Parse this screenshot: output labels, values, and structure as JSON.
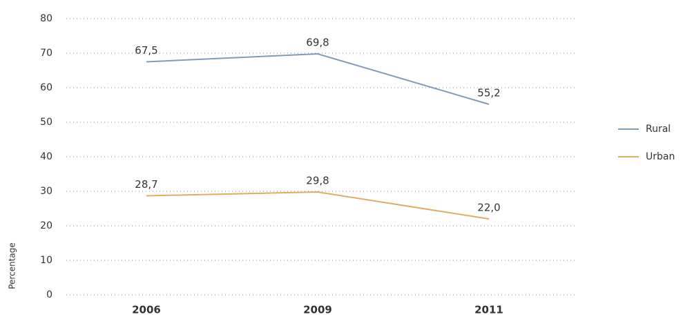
{
  "chart_data": {
    "type": "line",
    "ylabel": "Percentage",
    "categories": [
      "2006",
      "2009",
      "2011"
    ],
    "series": [
      {
        "name": "Rural",
        "color": "#7f9bb5",
        "values": [
          67.5,
          69.8,
          55.2
        ],
        "value_labels": [
          "67,5",
          "69,8",
          "55,2"
        ]
      },
      {
        "name": "Urban",
        "color": "#dfad62",
        "values": [
          28.7,
          29.8,
          22.0
        ],
        "value_labels": [
          "28,7",
          "29,8",
          "22,0"
        ]
      }
    ],
    "ylim": [
      0,
      80
    ],
    "yticks": [
      0,
      10,
      20,
      30,
      40,
      50,
      60,
      70,
      80
    ],
    "grid": true,
    "legend": "right"
  }
}
